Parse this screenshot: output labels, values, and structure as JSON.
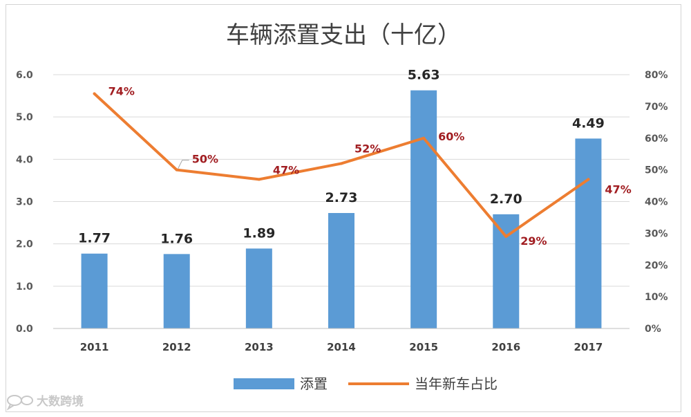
{
  "chart_data": {
    "type": "bar+line",
    "title": "车辆添置支出（十亿）",
    "categories": [
      "2011",
      "2012",
      "2013",
      "2014",
      "2015",
      "2016",
      "2017"
    ],
    "series": [
      {
        "name": "添置",
        "kind": "bar",
        "axis": "left",
        "values": [
          1.77,
          1.76,
          1.89,
          2.73,
          5.63,
          2.7,
          4.49
        ],
        "labels": [
          "1.77",
          "1.76",
          "1.89",
          "2.73",
          "5.63",
          "2.70",
          "4.49"
        ]
      },
      {
        "name": "当年新车占比",
        "kind": "line",
        "axis": "right",
        "values": [
          74,
          50,
          47,
          52,
          60,
          29,
          47
        ],
        "labels": [
          "74%",
          "50%",
          "47%",
          "52%",
          "60%",
          "29%",
          "47%"
        ]
      }
    ],
    "y_left": {
      "min": 0,
      "max": 6,
      "ticks": [
        "0.0",
        "1.0",
        "2.0",
        "3.0",
        "4.0",
        "5.0",
        "6.0"
      ]
    },
    "y_right": {
      "min": 0,
      "max": 80,
      "ticks": [
        "0%",
        "10%",
        "20%",
        "30%",
        "40%",
        "50%",
        "60%",
        "70%",
        "80%"
      ]
    },
    "grid": true,
    "legend": "bottom-center",
    "colors": {
      "bar": "#5b9bd5",
      "line": "#ed7d31",
      "pct_label": "#a11d21",
      "grid": "#d9d9d9"
    }
  },
  "watermark": {
    "icon": "bubble-logo-icon",
    "text": "大数跨境"
  }
}
